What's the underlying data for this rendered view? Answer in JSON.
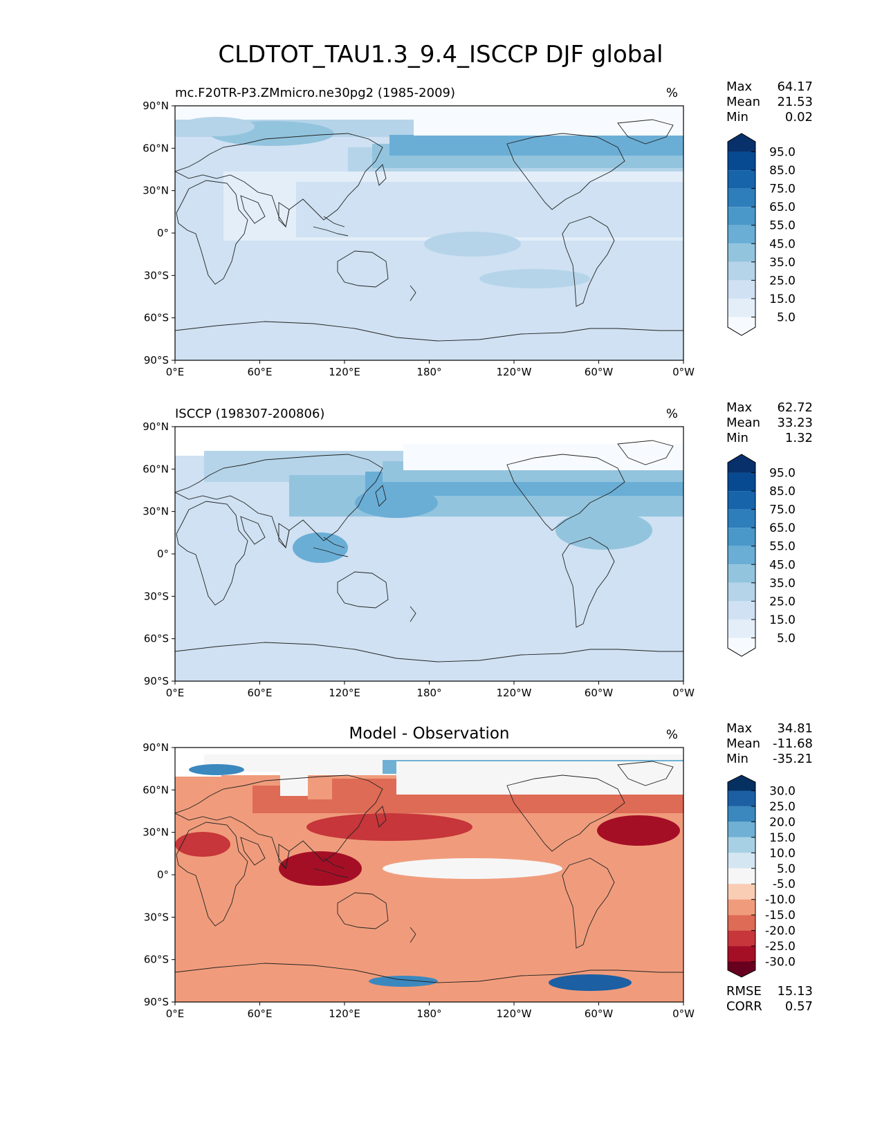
{
  "title": "CLDTOT_TAU1.3_9.4_ISCCP DJF global",
  "axes": {
    "lat_labels": [
      "90°N",
      "60°N",
      "30°N",
      "0°",
      "30°S",
      "60°S",
      "90°S"
    ],
    "lon_labels": [
      "0°E",
      "60°E",
      "120°E",
      "180°",
      "120°W",
      "60°W",
      "0°W"
    ]
  },
  "panels": [
    {
      "id": "model",
      "left_title": "mc.F20TR-P3.ZMmicro.ne30pg2 (1985-2009)",
      "center_title": "",
      "units": "%",
      "stats": [
        {
          "label": "Max",
          "value": "64.17"
        },
        {
          "label": "Mean",
          "value": "21.53"
        },
        {
          "label": "Min",
          "value": "0.02"
        }
      ],
      "colorbar": {
        "ticks": [
          "95.0",
          "85.0",
          "75.0",
          "65.0",
          "55.0",
          "45.0",
          "35.0",
          "25.0",
          "15.0",
          "5.0"
        ],
        "colors": [
          "#f7fbff",
          "#e3eef9",
          "#cfe1f2",
          "#b5d4e9",
          "#93c4de",
          "#6aaed6",
          "#4a97c9",
          "#2e7ebc",
          "#1764ab",
          "#084a92",
          "#08306b"
        ]
      },
      "extra_stats": []
    },
    {
      "id": "obs",
      "left_title": "ISCCP (198307-200806)",
      "center_title": "",
      "units": "%",
      "stats": [
        {
          "label": "Max",
          "value": "62.72"
        },
        {
          "label": "Mean",
          "value": "33.23"
        },
        {
          "label": "Min",
          "value": "1.32"
        }
      ],
      "colorbar": {
        "ticks": [
          "95.0",
          "85.0",
          "75.0",
          "65.0",
          "55.0",
          "45.0",
          "35.0",
          "25.0",
          "15.0",
          "5.0"
        ],
        "colors": [
          "#f7fbff",
          "#e3eef9",
          "#cfe1f2",
          "#b5d4e9",
          "#93c4de",
          "#6aaed6",
          "#4a97c9",
          "#2e7ebc",
          "#1764ab",
          "#084a92",
          "#08306b"
        ]
      },
      "extra_stats": []
    },
    {
      "id": "diff",
      "left_title": "",
      "center_title": "Model - Observation",
      "units": "%",
      "stats": [
        {
          "label": "Max",
          "value": "34.81"
        },
        {
          "label": "Mean",
          "value": "-11.68"
        },
        {
          "label": "Min",
          "value": "-35.21"
        }
      ],
      "colorbar": {
        "ticks": [
          "30.0",
          "25.0",
          "20.0",
          "15.0",
          "10.0",
          "5.0",
          "-5.0",
          "-10.0",
          "-15.0",
          "-20.0",
          "-25.0",
          "-30.0"
        ],
        "colors": [
          "#67001f",
          "#a50f26",
          "#c6363a",
          "#de6b55",
          "#f09c7c",
          "#f9ccb4",
          "#f6f6f6",
          "#d4e6f1",
          "#a7d0e4",
          "#6fb0d4",
          "#3b88be",
          "#1c5fa3",
          "#053061"
        ]
      },
      "extra_stats": [
        {
          "label": "RMSE",
          "value": "15.13"
        },
        {
          "label": "CORR",
          "value": "0.57"
        }
      ]
    }
  ]
}
